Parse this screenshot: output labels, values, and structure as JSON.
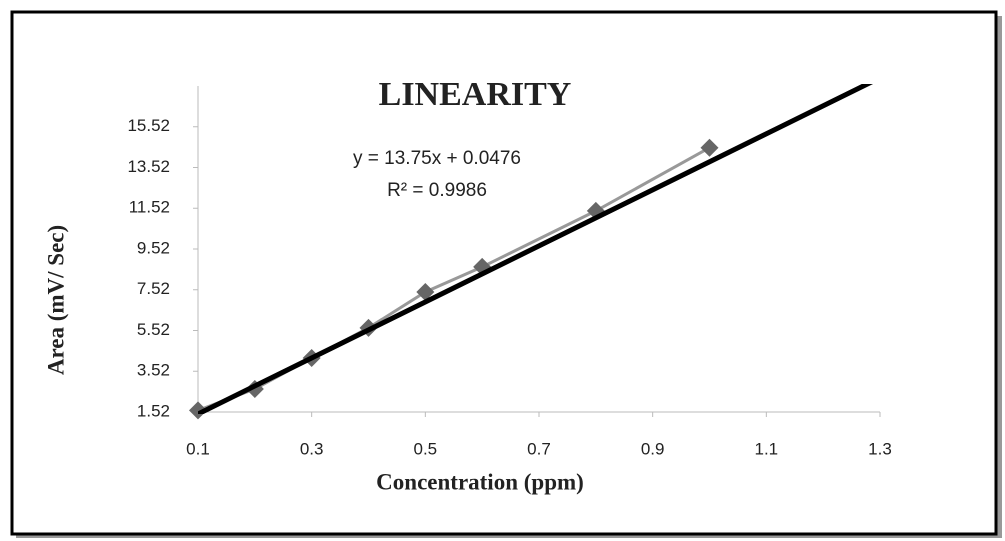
{
  "chart_data": {
    "type": "scatter",
    "title": "LINEARITY",
    "x_label": "Concentration (ppm)",
    "y_label": "Area (mV/ Sec)",
    "x": [
      0.1,
      0.2,
      0.3,
      0.4,
      0.5,
      0.6,
      0.8,
      1.0
    ],
    "values": [
      1.6,
      2.65,
      4.17,
      5.65,
      7.41,
      8.64,
      11.39,
      14.49
    ],
    "color": "#666666",
    "line_color": "#999999",
    "xlim": [
      0.1,
      1.3
    ],
    "xticks": [
      0.1,
      0.3,
      0.5,
      0.7,
      0.9,
      1.1,
      1.3
    ],
    "ylim": [
      1.52,
      17.52
    ],
    "yticks": [
      1.52,
      3.52,
      5.52,
      7.52,
      9.52,
      11.52,
      13.52,
      15.52
    ],
    "trendline": {
      "slope": 13.75,
      "intercept": 0.0476,
      "color": "#000000",
      "label": "y = 13.75x + 0.0476",
      "r2_label": "R² = 0.9986"
    }
  }
}
